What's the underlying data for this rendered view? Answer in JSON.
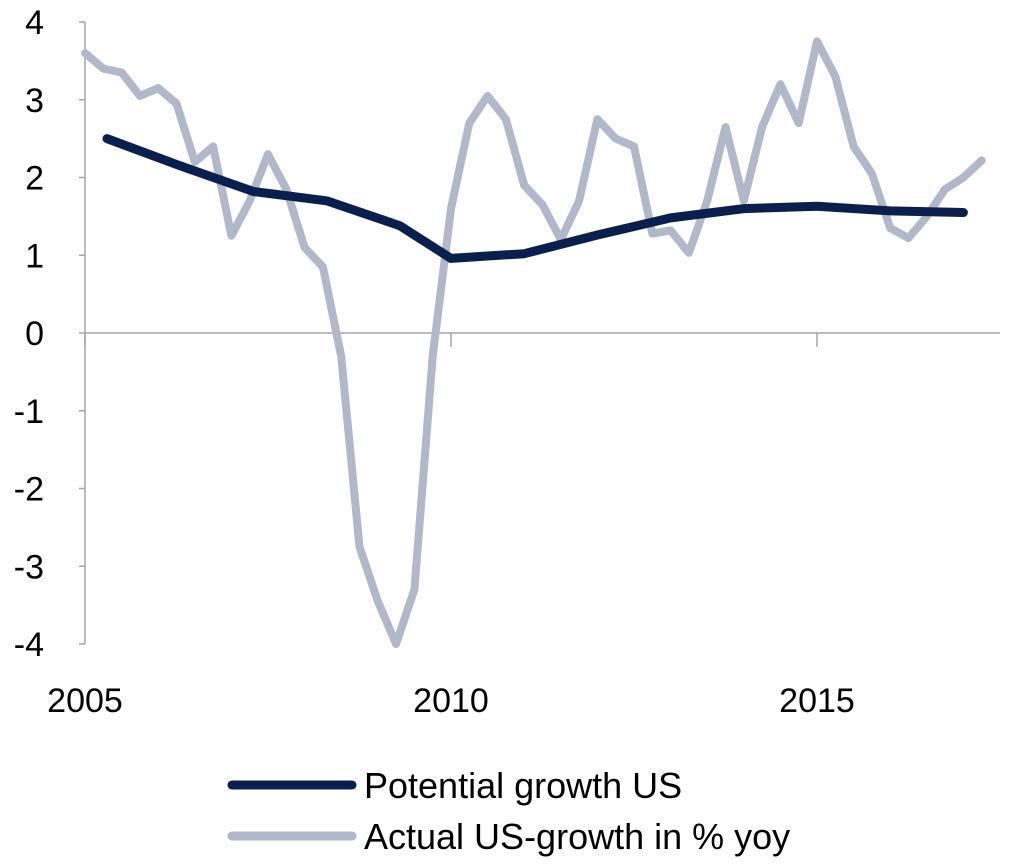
{
  "chart_data": {
    "type": "line",
    "title": "",
    "xlabel": "",
    "ylabel": "",
    "xlim": [
      2005,
      2017.5
    ],
    "ylim": [
      -4,
      4
    ],
    "x_ticks": [
      2005,
      2010,
      2015
    ],
    "x_tick_labels": [
      "2005",
      "2010",
      "2015"
    ],
    "y_ticks": [
      4,
      3,
      2,
      1,
      0,
      -1,
      -2,
      -3,
      -4
    ],
    "y_tick_labels": [
      "4",
      "3",
      "2",
      "1",
      "0",
      "-1",
      "-2",
      "-3",
      "-4"
    ],
    "grid": false,
    "legend_position": "bottom",
    "series": [
      {
        "name": "Potential growth US",
        "color": "#0b1f4e",
        "x": [
          2005.3,
          2006.3,
          2007.3,
          2008.3,
          2009.3,
          2010.0,
          2010.5,
          2011.0,
          2012.0,
          2013.0,
          2014.0,
          2015.0,
          2016.0,
          2017.0
        ],
        "y": [
          2.5,
          2.15,
          1.82,
          1.7,
          1.38,
          0.96,
          0.99,
          1.02,
          1.26,
          1.48,
          1.6,
          1.63,
          1.57,
          1.55
        ]
      },
      {
        "name": "Actual US-growth in % yoy",
        "color": "#b0b8c9",
        "x": [
          2005.0,
          2005.25,
          2005.5,
          2005.75,
          2006.0,
          2006.25,
          2006.5,
          2006.75,
          2007.0,
          2007.25,
          2007.5,
          2007.75,
          2008.0,
          2008.25,
          2008.5,
          2008.75,
          2009.0,
          2009.25,
          2009.5,
          2009.75,
          2010.0,
          2010.25,
          2010.5,
          2010.75,
          2011.0,
          2011.25,
          2011.5,
          2011.75,
          2012.0,
          2012.25,
          2012.5,
          2012.75,
          2013.0,
          2013.25,
          2013.5,
          2013.75,
          2014.0,
          2014.25,
          2014.5,
          2014.75,
          2015.0,
          2015.25,
          2015.5,
          2015.75,
          2016.0,
          2016.25,
          2016.5,
          2016.75,
          2017.0,
          2017.25
        ],
        "y": [
          3.6,
          3.4,
          3.35,
          3.05,
          3.15,
          2.95,
          2.2,
          2.4,
          1.25,
          1.7,
          2.3,
          1.85,
          1.1,
          0.85,
          -0.3,
          -2.75,
          -3.45,
          -4.0,
          -3.3,
          -0.3,
          1.6,
          2.7,
          3.05,
          2.75,
          1.9,
          1.65,
          1.2,
          1.7,
          2.75,
          2.5,
          2.4,
          1.28,
          1.32,
          1.03,
          1.7,
          2.65,
          1.7,
          2.65,
          3.2,
          2.7,
          3.75,
          3.3,
          2.4,
          2.05,
          1.35,
          1.22,
          1.5,
          1.85,
          2.0,
          2.22
        ]
      }
    ]
  }
}
